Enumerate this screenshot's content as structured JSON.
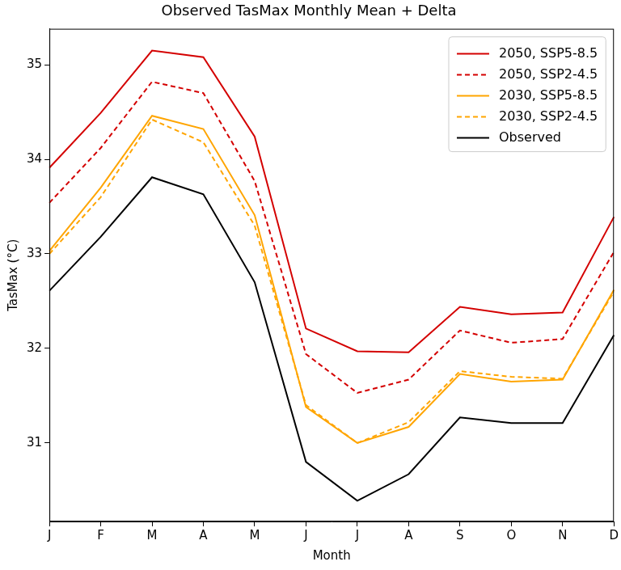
{
  "chart_data": {
    "type": "line",
    "title": "Observed TasMax Monthly Mean + Delta",
    "x_label": "Month",
    "y_label": "TasMax (°C)",
    "categories": [
      "J",
      "F",
      "M",
      "A",
      "M",
      "J",
      "J",
      "A",
      "S",
      "O",
      "N",
      "D"
    ],
    "series": [
      {
        "name": "2050, SSP5-8.5",
        "color": "#d40000",
        "line_style": "solid",
        "values": [
          33.91,
          34.49,
          35.15,
          35.08,
          34.24,
          32.21,
          31.97,
          31.96,
          32.44,
          32.36,
          32.38,
          33.39
        ]
      },
      {
        "name": "2050, SSP2-4.5",
        "color": "#d40000",
        "line_style": "dashed",
        "values": [
          33.54,
          34.12,
          34.82,
          34.7,
          33.77,
          31.94,
          31.53,
          31.67,
          32.19,
          32.06,
          32.1,
          33.02
        ]
      },
      {
        "name": "2030, SSP5-8.5",
        "color": "#ffa500",
        "line_style": "solid",
        "values": [
          33.03,
          33.7,
          34.46,
          34.32,
          33.41,
          31.38,
          31.0,
          31.17,
          31.73,
          31.65,
          31.67,
          32.62
        ]
      },
      {
        "name": "2030, SSP2-4.5",
        "color": "#ffa500",
        "line_style": "dashed",
        "values": [
          33.0,
          33.6,
          34.42,
          34.18,
          33.3,
          31.4,
          31.0,
          31.22,
          31.76,
          31.7,
          31.68,
          32.6
        ]
      },
      {
        "name": "Observed",
        "color": "#000000",
        "line_style": "solid",
        "values": [
          32.61,
          33.18,
          33.81,
          33.63,
          32.7,
          30.8,
          30.39,
          30.67,
          31.27,
          31.21,
          31.21,
          32.14
        ]
      }
    ],
    "ylim": [
      30.17,
      35.38
    ],
    "yticks": [
      31,
      32,
      33,
      34,
      35
    ],
    "grid": false,
    "legend": "upper right"
  }
}
